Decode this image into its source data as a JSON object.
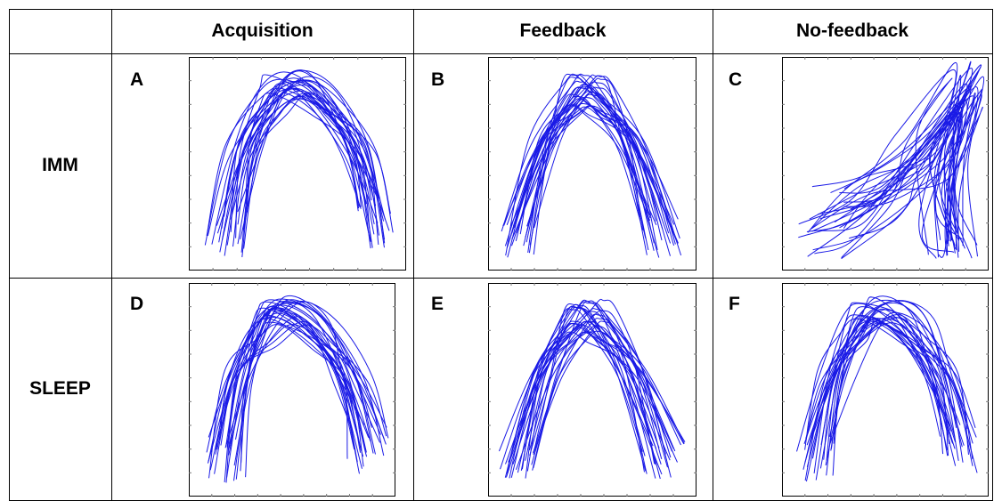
{
  "header": {
    "col_1": "Acquisition",
    "col_2": "Feedback",
    "col_3": "No-feedback"
  },
  "rows": [
    "IMM",
    "SLEEP"
  ],
  "panel_letters": [
    "A",
    "B",
    "C",
    "D",
    "E",
    "F"
  ],
  "colors": {
    "trace": "#1a1ae6",
    "frame": "#000000",
    "tick": "#7a7a7a"
  }
}
